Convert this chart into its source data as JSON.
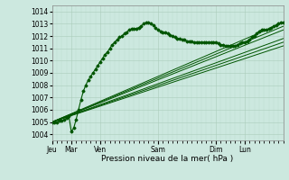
{
  "xlabel": "Pression niveau de la mer( hPa )",
  "ylim": [
    1003.5,
    1014.5
  ],
  "yticks": [
    1004,
    1005,
    1006,
    1007,
    1008,
    1009,
    1010,
    1011,
    1012,
    1013,
    1014
  ],
  "xtick_labels": [
    "Jeu",
    "Mar",
    "Ven",
    "Sam",
    "Dim",
    "Lun"
  ],
  "xtick_positions": [
    0,
    16,
    40,
    88,
    136,
    160
  ],
  "background_color": "#cce8df",
  "grid_major_color": "#aaccbb",
  "grid_minor_color": "#bbddcc",
  "line_color": "#005500",
  "total_hours": 192,
  "main_series": [
    0,
    1005.0,
    2,
    1005.0,
    4,
    1005.0,
    6,
    1005.1,
    8,
    1005.1,
    10,
    1005.2,
    12,
    1005.3,
    14,
    1005.5,
    16,
    1004.2,
    18,
    1004.5,
    20,
    1005.2,
    22,
    1006.0,
    24,
    1006.8,
    26,
    1007.5,
    28,
    1008.0,
    30,
    1008.4,
    32,
    1008.7,
    34,
    1009.0,
    36,
    1009.3,
    38,
    1009.6,
    40,
    1009.9,
    42,
    1010.2,
    44,
    1010.5,
    46,
    1010.7,
    48,
    1011.0,
    50,
    1011.3,
    52,
    1011.5,
    54,
    1011.7,
    56,
    1011.9,
    58,
    1012.0,
    60,
    1012.2,
    62,
    1012.3,
    64,
    1012.5,
    66,
    1012.6,
    68,
    1012.6,
    70,
    1012.6,
    72,
    1012.7,
    74,
    1012.8,
    76,
    1013.0,
    78,
    1013.1,
    80,
    1013.1,
    82,
    1013.0,
    84,
    1012.9,
    86,
    1012.7,
    88,
    1012.5,
    90,
    1012.4,
    92,
    1012.3,
    94,
    1012.3,
    96,
    1012.2,
    98,
    1012.1,
    100,
    1012.0,
    102,
    1011.9,
    104,
    1011.8,
    106,
    1011.8,
    108,
    1011.7,
    110,
    1011.7,
    112,
    1011.6,
    114,
    1011.6,
    116,
    1011.6,
    118,
    1011.5,
    120,
    1011.5,
    122,
    1011.5,
    124,
    1011.5,
    126,
    1011.5,
    128,
    1011.5,
    130,
    1011.5,
    132,
    1011.5,
    134,
    1011.5,
    136,
    1011.5,
    138,
    1011.4,
    140,
    1011.3,
    142,
    1011.3,
    144,
    1011.2,
    146,
    1011.2,
    148,
    1011.2,
    150,
    1011.2,
    152,
    1011.2,
    154,
    1011.3,
    156,
    1011.4,
    158,
    1011.5,
    160,
    1011.5,
    162,
    1011.6,
    164,
    1011.7,
    166,
    1011.9,
    168,
    1012.0,
    170,
    1012.2,
    172,
    1012.4,
    174,
    1012.5,
    176,
    1012.5,
    178,
    1012.5,
    180,
    1012.6,
    182,
    1012.7,
    184,
    1012.8,
    186,
    1012.9,
    188,
    1013.0,
    190,
    1013.1,
    192,
    1013.1
  ],
  "forecast_series": [
    [
      0,
      1005.0,
      192,
      1013.1
    ],
    [
      0,
      1005.0,
      192,
      1012.8
    ],
    [
      0,
      1005.0,
      192,
      1012.5
    ],
    [
      0,
      1005.0,
      192,
      1011.8
    ],
    [
      0,
      1005.0,
      192,
      1011.5
    ],
    [
      0,
      1005.0,
      192,
      1011.2
    ]
  ]
}
